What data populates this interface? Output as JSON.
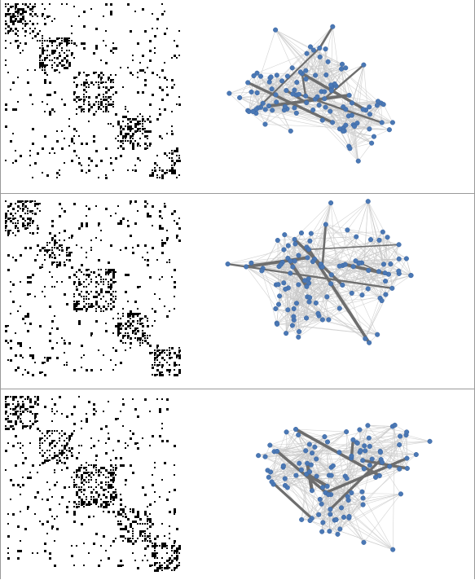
{
  "colors": {
    "background": "#ffffff",
    "node": "#4a78b5",
    "node_stroke": "#3a64a0",
    "edge_light": "#c8c8c8",
    "edge_strong": "#6e6e6e",
    "matrix_cell": "#000000",
    "frame": "#9a9a9a"
  },
  "panels": [
    {
      "row": 1,
      "matrix_seed": 11,
      "network_seed": 101,
      "node_count": 110
    },
    {
      "row": 2,
      "matrix_seed": 23,
      "network_seed": 202,
      "node_count": 110
    },
    {
      "row": 3,
      "matrix_seed": 37,
      "network_seed": 303,
      "node_count": 110
    }
  ]
}
